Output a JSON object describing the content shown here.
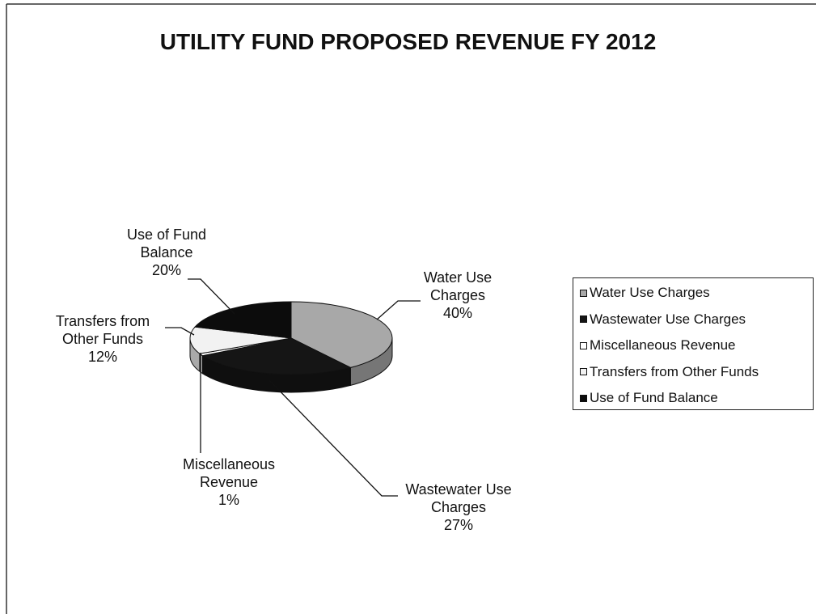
{
  "chart_data": {
    "type": "pie",
    "title": "UTILITY FUND PROPOSED REVENUE FY 2012",
    "categories": [
      "Water Use Charges",
      "Wastewater Use Charges",
      "Miscellaneous Revenue",
      "Transfers from Other Funds",
      "Use of Fund Balance"
    ],
    "values": [
      40,
      27,
      1,
      12,
      20
    ],
    "value_labels": [
      "40%",
      "27%",
      "1%",
      "12%",
      "20%"
    ],
    "colors": [
      "#a8a8a8",
      "#151515",
      "#ffffff",
      "#f2f2f2",
      "#0c0c0c"
    ],
    "legend": "right"
  }
}
